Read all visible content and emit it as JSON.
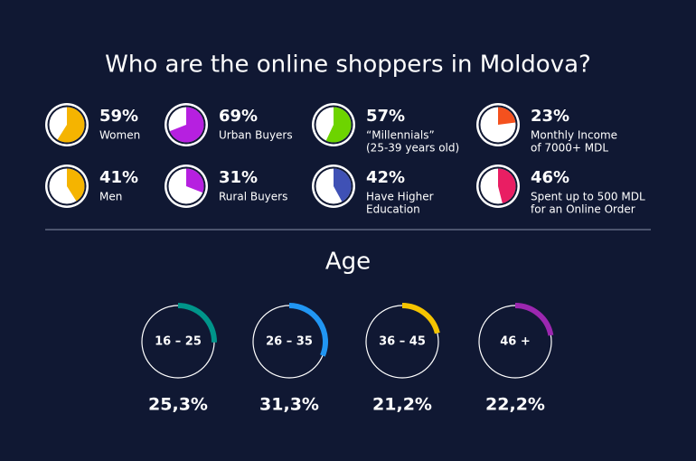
{
  "title": "Who are the online shoppers in Moldova?",
  "stats": [
    {
      "value": 59,
      "value_label": "59%",
      "label": [
        "Women"
      ],
      "color": "#f5b400"
    },
    {
      "value": 69,
      "value_label": "69%",
      "label": [
        "Urban Buyers"
      ],
      "color": "#b620e0"
    },
    {
      "value": 57,
      "value_label": "57%",
      "label": [
        "“Millennials”",
        "(25-39 years old)"
      ],
      "color": "#6dd400"
    },
    {
      "value": 23,
      "value_label": "23%",
      "label": [
        "Monthly Income",
        "of 7000+ MDL"
      ],
      "color": "#f4511e"
    },
    {
      "value": 41,
      "value_label": "41%",
      "label": [
        "Men"
      ],
      "color": "#f5b400"
    },
    {
      "value": 31,
      "value_label": "31%",
      "label": [
        "Rural Buyers"
      ],
      "color": "#b620e0"
    },
    {
      "value": 42,
      "value_label": "42%",
      "label": [
        "Have Higher",
        "Education"
      ],
      "color": "#3f51b5"
    },
    {
      "value": 46,
      "value_label": "46%",
      "label": [
        "Spent up to 500 MDL",
        "for an Online Order"
      ],
      "color": "#e91e63"
    }
  ],
  "age": {
    "title": "Age",
    "groups": [
      {
        "label": "16 – 25",
        "value": 25.3,
        "value_label": "25,3%",
        "color": "#00958a"
      },
      {
        "label": "26 – 35",
        "value": 31.3,
        "value_label": "31,3%",
        "color": "#2196f3"
      },
      {
        "label": "36 – 45",
        "value": 21.2,
        "value_label": "21,2%",
        "color": "#f5c400"
      },
      {
        "label": "46 +",
        "value": 22.2,
        "value_label": "22,2%",
        "color": "#9c27b0"
      }
    ]
  }
}
